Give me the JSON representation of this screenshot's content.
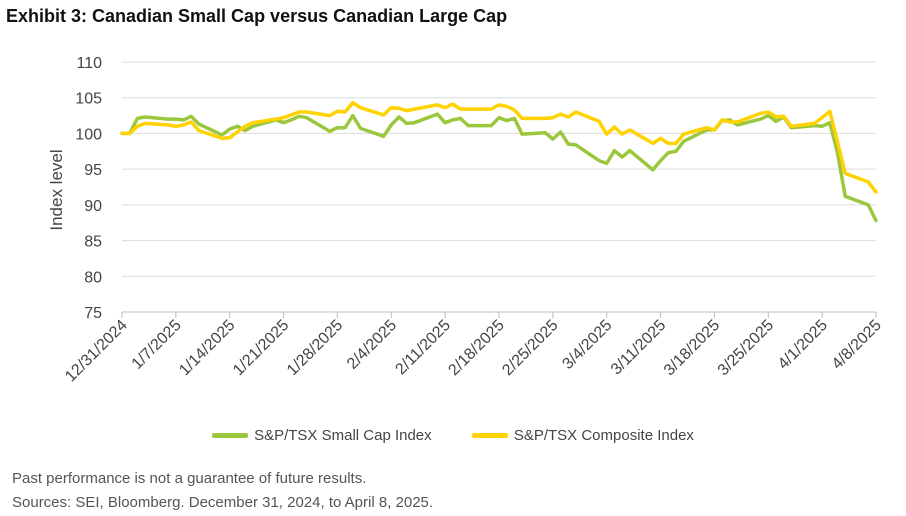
{
  "title": "Exhibit 3: Canadian Small Cap versus Canadian Large Cap",
  "footnote": "Past performance is not a guarantee of future results.",
  "source": "Sources: SEI, Bloomberg. December 31, 2024, to April 8, 2025.",
  "chart_data": {
    "type": "line",
    "ylabel": "Index level",
    "xlabel": "",
    "ylim": [
      75,
      110
    ],
    "yticks": [
      75,
      80,
      85,
      90,
      95,
      100,
      105,
      110
    ],
    "x_range": [
      "2024-12-31",
      "2025-04-08"
    ],
    "x_tick_labels": [
      "12/31/2024",
      "1/7/2025",
      "1/14/2025",
      "1/21/2025",
      "1/28/2025",
      "2/4/2025",
      "2/11/2025",
      "2/18/2025",
      "2/25/2025",
      "3/4/2025",
      "3/11/2025",
      "3/18/2025",
      "3/25/2025",
      "4/1/2025",
      "4/8/2025"
    ],
    "grid": "horizontal",
    "legend_position": "bottom",
    "series": [
      {
        "name": "S&P/TSX Small Cap Index",
        "color": "#9BC73C",
        "points": [
          [
            "2024-12-31",
            100.0
          ],
          [
            "2025-01-01",
            100.0
          ],
          [
            "2025-01-02",
            102.1
          ],
          [
            "2025-01-03",
            102.3
          ],
          [
            "2025-01-06",
            102.0
          ],
          [
            "2025-01-07",
            102.0
          ],
          [
            "2025-01-08",
            101.9
          ],
          [
            "2025-01-09",
            102.4
          ],
          [
            "2025-01-10",
            101.3
          ],
          [
            "2025-01-13",
            99.8
          ],
          [
            "2025-01-14",
            100.6
          ],
          [
            "2025-01-15",
            101.0
          ],
          [
            "2025-01-16",
            100.4
          ],
          [
            "2025-01-17",
            101.0
          ],
          [
            "2025-01-20",
            101.9
          ],
          [
            "2025-01-21",
            101.5
          ],
          [
            "2025-01-22",
            101.9
          ],
          [
            "2025-01-23",
            102.4
          ],
          [
            "2025-01-24",
            102.2
          ],
          [
            "2025-01-27",
            100.3
          ],
          [
            "2025-01-28",
            100.8
          ],
          [
            "2025-01-29",
            100.8
          ],
          [
            "2025-01-30",
            102.5
          ],
          [
            "2025-01-31",
            100.7
          ],
          [
            "2025-02-03",
            99.6
          ],
          [
            "2025-02-04",
            101.2
          ],
          [
            "2025-02-05",
            102.3
          ],
          [
            "2025-02-06",
            101.4
          ],
          [
            "2025-02-07",
            101.5
          ],
          [
            "2025-02-10",
            102.7
          ],
          [
            "2025-02-11",
            101.5
          ],
          [
            "2025-02-12",
            101.9
          ],
          [
            "2025-02-13",
            102.1
          ],
          [
            "2025-02-14",
            101.1
          ],
          [
            "2025-02-17",
            101.1
          ],
          [
            "2025-02-18",
            102.2
          ],
          [
            "2025-02-19",
            101.8
          ],
          [
            "2025-02-20",
            102.1
          ],
          [
            "2025-02-21",
            99.9
          ],
          [
            "2025-02-24",
            100.1
          ],
          [
            "2025-02-25",
            99.2
          ],
          [
            "2025-02-26",
            100.2
          ],
          [
            "2025-02-27",
            98.5
          ],
          [
            "2025-02-28",
            98.4
          ],
          [
            "2025-03-03",
            96.2
          ],
          [
            "2025-03-04",
            95.8
          ],
          [
            "2025-03-05",
            97.6
          ],
          [
            "2025-03-06",
            96.7
          ],
          [
            "2025-03-07",
            97.6
          ],
          [
            "2025-03-10",
            94.9
          ],
          [
            "2025-03-11",
            96.2
          ],
          [
            "2025-03-12",
            97.3
          ],
          [
            "2025-03-13",
            97.5
          ],
          [
            "2025-03-14",
            98.9
          ],
          [
            "2025-03-17",
            100.5
          ],
          [
            "2025-03-18",
            100.5
          ],
          [
            "2025-03-19",
            101.8
          ],
          [
            "2025-03-20",
            101.9
          ],
          [
            "2025-03-21",
            101.2
          ],
          [
            "2025-03-24",
            102.0
          ],
          [
            "2025-03-25",
            102.5
          ],
          [
            "2025-03-26",
            101.7
          ],
          [
            "2025-03-27",
            102.3
          ],
          [
            "2025-03-28",
            100.8
          ],
          [
            "2025-03-31",
            101.1
          ],
          [
            "2025-04-01",
            101.0
          ],
          [
            "2025-04-02",
            101.5
          ],
          [
            "2025-04-03",
            97.3
          ],
          [
            "2025-04-04",
            91.2
          ],
          [
            "2025-04-07",
            90.0
          ],
          [
            "2025-04-08",
            87.8
          ]
        ]
      },
      {
        "name": "S&P/TSX Composite Index",
        "color": "#FFD200",
        "points": [
          [
            "2024-12-31",
            100.0
          ],
          [
            "2025-01-01",
            100.0
          ],
          [
            "2025-01-02",
            101.0
          ],
          [
            "2025-01-03",
            101.4
          ],
          [
            "2025-01-06",
            101.2
          ],
          [
            "2025-01-07",
            101.0
          ],
          [
            "2025-01-08",
            101.2
          ],
          [
            "2025-01-09",
            101.6
          ],
          [
            "2025-01-10",
            100.4
          ],
          [
            "2025-01-13",
            99.3
          ],
          [
            "2025-01-14",
            99.4
          ],
          [
            "2025-01-15",
            100.2
          ],
          [
            "2025-01-16",
            101.0
          ],
          [
            "2025-01-17",
            101.5
          ],
          [
            "2025-01-20",
            102.0
          ],
          [
            "2025-01-21",
            102.2
          ],
          [
            "2025-01-22",
            102.6
          ],
          [
            "2025-01-23",
            103.0
          ],
          [
            "2025-01-24",
            103.0
          ],
          [
            "2025-01-27",
            102.5
          ],
          [
            "2025-01-28",
            103.1
          ],
          [
            "2025-01-29",
            103.0
          ],
          [
            "2025-01-30",
            104.3
          ],
          [
            "2025-01-31",
            103.6
          ],
          [
            "2025-02-03",
            102.6
          ],
          [
            "2025-02-04",
            103.6
          ],
          [
            "2025-02-05",
            103.5
          ],
          [
            "2025-02-06",
            103.2
          ],
          [
            "2025-02-07",
            103.4
          ],
          [
            "2025-02-10",
            104.0
          ],
          [
            "2025-02-11",
            103.6
          ],
          [
            "2025-02-12",
            104.1
          ],
          [
            "2025-02-13",
            103.4
          ],
          [
            "2025-02-14",
            103.4
          ],
          [
            "2025-02-17",
            103.4
          ],
          [
            "2025-02-18",
            104.0
          ],
          [
            "2025-02-19",
            103.8
          ],
          [
            "2025-02-20",
            103.3
          ],
          [
            "2025-02-21",
            102.1
          ],
          [
            "2025-02-24",
            102.1
          ],
          [
            "2025-02-25",
            102.2
          ],
          [
            "2025-02-26",
            102.7
          ],
          [
            "2025-02-27",
            102.3
          ],
          [
            "2025-02-28",
            103.0
          ],
          [
            "2025-03-03",
            101.7
          ],
          [
            "2025-03-04",
            99.9
          ],
          [
            "2025-03-05",
            100.9
          ],
          [
            "2025-03-06",
            99.9
          ],
          [
            "2025-03-07",
            100.5
          ],
          [
            "2025-03-10",
            98.6
          ],
          [
            "2025-03-11",
            99.3
          ],
          [
            "2025-03-12",
            98.6
          ],
          [
            "2025-03-13",
            98.6
          ],
          [
            "2025-03-14",
            99.9
          ],
          [
            "2025-03-17",
            100.8
          ],
          [
            "2025-03-18",
            100.5
          ],
          [
            "2025-03-19",
            101.9
          ],
          [
            "2025-03-20",
            101.6
          ],
          [
            "2025-03-21",
            101.6
          ],
          [
            "2025-03-24",
            102.8
          ],
          [
            "2025-03-25",
            103.0
          ],
          [
            "2025-03-26",
            102.3
          ],
          [
            "2025-03-27",
            102.4
          ],
          [
            "2025-03-28",
            101.0
          ],
          [
            "2025-03-31",
            101.4
          ],
          [
            "2025-04-01",
            102.2
          ],
          [
            "2025-04-02",
            103.1
          ],
          [
            "2025-04-03",
            98.8
          ],
          [
            "2025-04-04",
            94.4
          ],
          [
            "2025-04-07",
            93.2
          ],
          [
            "2025-04-08",
            91.8
          ]
        ]
      }
    ]
  }
}
